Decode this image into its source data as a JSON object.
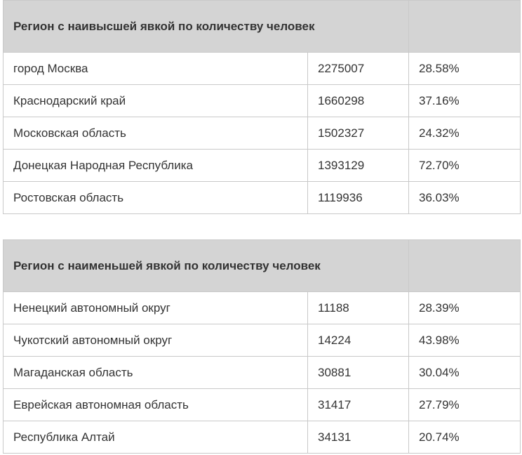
{
  "top_table": {
    "header": "Регион с наивысшей явкой по количеству человек",
    "rows": [
      {
        "region": "город Москва",
        "count": "2275007",
        "percent": "28.58%"
      },
      {
        "region": "Краснодарский край",
        "count": "1660298",
        "percent": "37.16%"
      },
      {
        "region": "Московская область",
        "count": "1502327",
        "percent": "24.32%"
      },
      {
        "region": "Донецкая Народная Республика",
        "count": "1393129",
        "percent": "72.70%"
      },
      {
        "region": "Ростовская область",
        "count": "1119936",
        "percent": "36.03%"
      }
    ]
  },
  "bottom_table": {
    "header": "Регион с наименьшей явкой по количеству человек",
    "rows": [
      {
        "region": "Ненецкий автономный округ",
        "count": "11188",
        "percent": "28.39%"
      },
      {
        "region": "Чукотский автономный округ",
        "count": "14224",
        "percent": "43.98%"
      },
      {
        "region": "Магаданская область",
        "count": "30881",
        "percent": "30.04%"
      },
      {
        "region": "Еврейская автономная область",
        "count": "31417",
        "percent": "27.79%"
      },
      {
        "region": "Республика Алтай",
        "count": "34131",
        "percent": "20.74%"
      }
    ]
  }
}
